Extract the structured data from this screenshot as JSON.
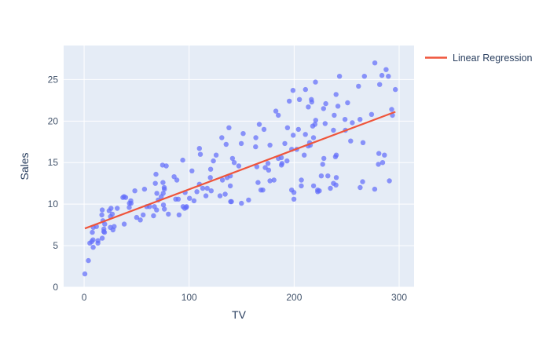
{
  "colors": {
    "plot_background": "#E5ECF6",
    "grid": "#FFFFFF",
    "marker": "#636EFA",
    "regression_line": "#EF553B",
    "text": "#2a3f5f",
    "tick_text": "#42536b"
  },
  "legend": {
    "items": [
      {
        "label": "Linear Regression",
        "color": "#EF553B"
      }
    ]
  },
  "chart_data": {
    "type": "scatter",
    "title": "",
    "xlabel": "TV",
    "ylabel": "Sales",
    "x_ticks": [
      0,
      100,
      200,
      300
    ],
    "y_ticks": [
      0,
      5,
      10,
      15,
      20,
      25
    ],
    "x_range": [
      -19.5,
      314.2
    ],
    "y_range": [
      0,
      29.1
    ],
    "grid": true,
    "legend_position": "top-right-outside",
    "series": [
      {
        "kind": "markers",
        "color": "#636EFA",
        "opacity": 0.72,
        "marker_radius": 3.2,
        "x": [
          230.1,
          44.5,
          17.2,
          151.5,
          180.8,
          8.7,
          57.5,
          120.2,
          8.6,
          199.8,
          66.1,
          214.7,
          23.8,
          97.5,
          204.1,
          195.4,
          67.8,
          281.4,
          69.2,
          147.3,
          218.4,
          237.4,
          13.2,
          228.3,
          62.3,
          262.9,
          142.9,
          240.1,
          248.8,
          70.6,
          292.9,
          112.9,
          97.2,
          265.6,
          95.7,
          290.7,
          266.9,
          74.7,
          43.1,
          228.0,
          202.5,
          177.0,
          293.6,
          206.9,
          25.1,
          175.1,
          89.7,
          239.9,
          227.2,
          66.9,
          199.8,
          100.4,
          216.4,
          182.6,
          262.7,
          198.9,
          7.3,
          136.2,
          210.8,
          210.7,
          53.5,
          261.3,
          239.3,
          102.7,
          131.1,
          69.0,
          31.5,
          139.3,
          237.4,
          216.8,
          199.1,
          109.8,
          26.8,
          129.4,
          213.4,
          16.9,
          27.5,
          120.5,
          5.4,
          116.0,
          76.4,
          239.8,
          75.3,
          68.4,
          213.5,
          193.2,
          76.3,
          110.7,
          88.3,
          109.8,
          134.3,
          28.6,
          217.7,
          250.9,
          107.4,
          163.3,
          197.6,
          184.9,
          289.7,
          135.2,
          222.4,
          296.4,
          280.2,
          187.9,
          238.2,
          137.9,
          25.0,
          90.4,
          13.1,
          255.4,
          225.8,
          241.7,
          175.7,
          209.6,
          78.2,
          75.1,
          139.2,
          76.4,
          125.7,
          19.4,
          141.3,
          18.8,
          224.0,
          123.1,
          229.5,
          87.2,
          7.8,
          80.2,
          220.3,
          59.6,
          0.7,
          265.2,
          8.4,
          219.8,
          36.9,
          48.3,
          25.6,
          273.7,
          43.0,
          184.9,
          73.4,
          193.7,
          220.5,
          104.6,
          96.2,
          140.3,
          240.1,
          243.2,
          38.0,
          44.7,
          280.7,
          121.0,
          197.6,
          171.3,
          187.8,
          4.1,
          93.9,
          149.8,
          11.7,
          131.7,
          172.5,
          85.7,
          188.4,
          163.5,
          117.2,
          234.5,
          17.9,
          206.8,
          215.4,
          284.3,
          50.0,
          164.5,
          19.6,
          168.4,
          222.4,
          276.9,
          248.4,
          170.2,
          276.7,
          165.6,
          156.6,
          218.5,
          56.2,
          287.6,
          253.8,
          205.0,
          139.5,
          191.1,
          286.0,
          18.7,
          39.5,
          75.5,
          17.2,
          166.8,
          149.7,
          38.2,
          94.2,
          177.0,
          283.6,
          232.1
        ],
        "y": [
          22.1,
          10.4,
          9.3,
          18.5,
          12.9,
          7.2,
          11.8,
          13.2,
          4.8,
          10.6,
          8.6,
          17.4,
          9.2,
          9.7,
          19.0,
          22.4,
          12.5,
          24.4,
          11.3,
          14.6,
          18.0,
          12.5,
          5.6,
          15.5,
          9.7,
          12.0,
          15.0,
          15.9,
          18.9,
          10.5,
          21.4,
          11.9,
          9.6,
          17.4,
          9.5,
          12.8,
          25.4,
          14.7,
          10.1,
          21.5,
          16.6,
          17.1,
          20.7,
          12.9,
          8.5,
          14.9,
          10.6,
          23.2,
          14.8,
          9.7,
          11.4,
          10.7,
          22.6,
          21.2,
          20.2,
          23.7,
          5.5,
          13.2,
          23.8,
          18.4,
          8.1,
          24.2,
          15.7,
          14.0,
          18.0,
          9.3,
          9.5,
          13.4,
          18.9,
          22.3,
          18.3,
          12.4,
          8.8,
          11.0,
          17.0,
          8.7,
          6.9,
          14.2,
          5.3,
          11.0,
          11.8,
          12.3,
          11.3,
          13.6,
          21.7,
          15.2,
          12.0,
          16.0,
          12.9,
          16.7,
          11.2,
          7.3,
          19.4,
          22.2,
          11.5,
          16.9,
          11.7,
          15.5,
          25.4,
          17.2,
          11.7,
          23.8,
          14.8,
          14.7,
          20.7,
          19.2,
          7.2,
          8.7,
          5.3,
          19.8,
          13.4,
          21.8,
          14.1,
          15.9,
          14.6,
          12.6,
          12.2,
          9.4,
          15.9,
          6.6,
          15.5,
          7.0,
          11.6,
          15.2,
          19.7,
          10.6,
          6.6,
          8.8,
          24.7,
          9.7,
          1.6,
          12.7,
          5.7,
          19.6,
          10.8,
          11.6,
          9.5,
          20.8,
          9.6,
          20.7,
          10.9,
          19.2,
          20.1,
          10.4,
          11.4,
          10.3,
          13.2,
          25.4,
          10.9,
          10.1,
          16.1,
          11.6,
          16.6,
          19.0,
          15.6,
          3.2,
          15.3,
          10.1,
          7.3,
          12.9,
          14.4,
          13.3,
          14.9,
          18.0,
          11.9,
          11.9,
          8.0,
          12.2,
          17.1,
          15.0,
          8.4,
          14.5,
          7.6,
          11.7,
          11.5,
          27.0,
          20.2,
          11.7,
          11.8,
          12.6,
          10.5,
          12.2,
          8.7,
          26.2,
          17.6,
          22.6,
          10.3,
          17.3,
          15.9,
          6.7,
          10.8,
          9.9,
          5.9,
          19.6,
          17.3,
          7.6,
          9.7,
          12.8,
          25.5,
          13.4
        ]
      },
      {
        "kind": "line",
        "name": "Linear Regression",
        "color": "#EF553B",
        "width": 2.2,
        "x": [
          0.7,
          296.4
        ],
        "y": [
          7.07,
          21.12
        ]
      }
    ]
  }
}
